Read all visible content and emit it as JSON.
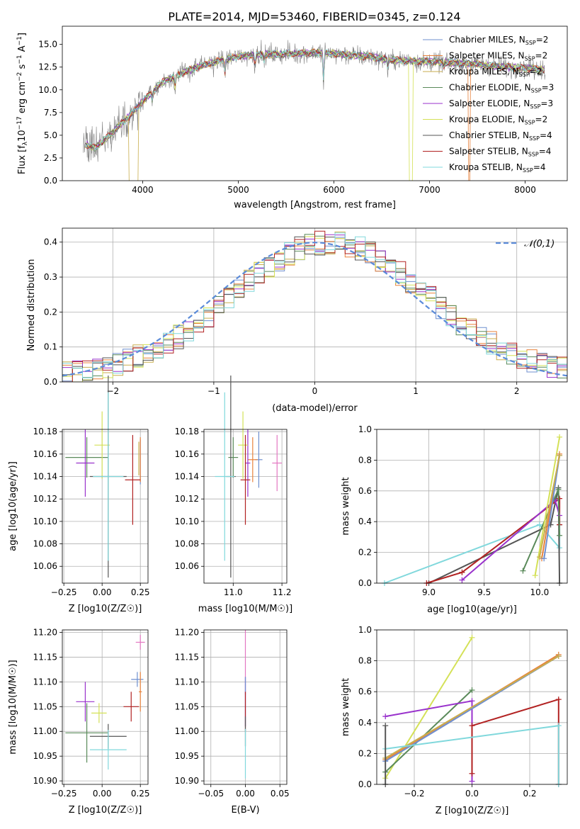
{
  "figure_title": "PLATE=2014, MJD=53460, FIBERID=0345, z=0.124",
  "colors": {
    "Chabrier MILES": "#6f8fcf",
    "Salpeter MILES": "#e8823c",
    "Kroupa MILES": "#c9ae4f",
    "Chabrier ELODIE": "#5a8a5a",
    "Salpeter ELODIE": "#9932cc",
    "Kroupa ELODIE": "#d4e157",
    "Chabrier STELIB": "#555555",
    "Salpeter STELIB": "#b22222",
    "Kroupa STELIB": "#80d8dc",
    "Extra": "#e377c2",
    "Normal": "#5b8bd9"
  },
  "chart_data": [
    {
      "id": "spectrum",
      "type": "line",
      "title": "PLATE=2014, MJD=53460, FIBERID=0345, z=0.124",
      "xlabel": "wavelength [Angstrom, rest frame]",
      "ylabel": "Flux [f_λ10^-17 erg cm^-2 s^-1 A^-1]",
      "xlim": [
        3160,
        8440
      ],
      "ylim": [
        0,
        17
      ],
      "xticks": [
        "4000",
        "5000",
        "6000",
        "7000",
        "8000"
      ],
      "yticks": [
        "0.0",
        "2.5",
        "5.0",
        "7.5",
        "10.0",
        "12.5",
        "15.0"
      ],
      "legend_position": "top-right",
      "continuum": {
        "x": [
          3400,
          3500,
          3600,
          3700,
          3800,
          3900,
          4000,
          4100,
          4200,
          4300,
          4400,
          4500,
          4600,
          4800,
          5000,
          5200,
          5400,
          5600,
          5800,
          6000,
          6200,
          6400,
          6600,
          6800,
          7000,
          7200,
          7400,
          7600,
          7800,
          8000,
          8200
        ],
        "y": [
          4.0,
          3.6,
          4.5,
          5.5,
          6.5,
          7.5,
          8.7,
          9.8,
          10.8,
          11.3,
          11.8,
          12.2,
          12.6,
          13.2,
          13.7,
          13.9,
          13.9,
          14.0,
          14.1,
          14.0,
          13.8,
          13.6,
          13.3,
          13.2,
          13.1,
          13.0,
          12.9,
          12.7,
          12.5,
          12.4,
          12.2
        ]
      },
      "series": [
        {
          "name": "Chabrier MILES",
          "ssp": "2"
        },
        {
          "name": "Salpeter MILES",
          "ssp": "2"
        },
        {
          "name": "Kroupa MILES",
          "ssp": "2"
        },
        {
          "name": "Chabrier ELODIE",
          "ssp": "3"
        },
        {
          "name": "Salpeter ELODIE",
          "ssp": "3"
        },
        {
          "name": "Kroupa ELODIE",
          "ssp": "2"
        },
        {
          "name": "Chabrier STELIB",
          "ssp": "4"
        },
        {
          "name": "Salpeter STELIB",
          "ssp": "4"
        },
        {
          "name": "Kroupa STELIB",
          "ssp": "4"
        }
      ]
    },
    {
      "id": "residual-histogram",
      "type": "bar",
      "xlabel": "(data-model)/error",
      "ylabel": "Normed distribution",
      "xlim": [
        -2.5,
        2.5
      ],
      "ylim": [
        0,
        0.44
      ],
      "xticks": [
        "−2",
        "−1",
        "0",
        "1",
        "2"
      ],
      "yticks": [
        "0.0",
        "0.1",
        "0.2",
        "0.3",
        "0.4"
      ],
      "bin_width": 0.1,
      "normal_label": "𝒩(0,1)",
      "legend_position": "top-right"
    },
    {
      "id": "age-vs-z",
      "type": "scatter",
      "xlabel": "Z [log10(Z/Z☉)]",
      "ylabel": "age [log10(age/yr)]",
      "xlim": [
        -0.26,
        0.3
      ],
      "ylim": [
        10.045,
        10.182
      ],
      "xticks": [
        -0.25,
        0.0,
        0.25
      ],
      "xtick_labels": [
        "−0.25",
        "0.00",
        "0.25"
      ],
      "yticks": [
        10.06,
        10.08,
        10.1,
        10.12,
        10.14,
        10.16,
        10.18
      ],
      "ytick_labels": [
        "10.06",
        "10.08",
        "10.10",
        "10.12",
        "10.14",
        "10.16",
        "10.18"
      ],
      "points": [
        {
          "s": "Chabrier MILES",
          "x": 0.25,
          "xerr": 0.0,
          "y": 10.153,
          "yerr": 0.02
        },
        {
          "s": "Salpeter MILES",
          "x": 0.25,
          "xerr": 0.0,
          "y": 10.155,
          "yerr": 0.02
        },
        {
          "s": "Kroupa MILES",
          "x": 0.24,
          "xerr": 0.0,
          "y": 10.156,
          "yerr": 0.015
        },
        {
          "s": "Chabrier ELODIE",
          "x": -0.1,
          "xerr": 0.14,
          "y": 10.157,
          "yerr": 0.018
        },
        {
          "s": "Salpeter ELODIE",
          "x": -0.11,
          "xerr": 0.06,
          "y": 10.152,
          "yerr": 0.03
        },
        {
          "s": "Kroupa ELODIE",
          "x": 0.0,
          "xerr": 0.05,
          "y": 10.168,
          "yerr": 0.03
        },
        {
          "s": "Chabrier STELIB",
          "x": 0.04,
          "xerr": 0.12,
          "y": 10.14,
          "yerr": 0.09
        },
        {
          "s": "Salpeter STELIB",
          "x": 0.2,
          "xerr": 0.05,
          "y": 10.137,
          "yerr": 0.04
        },
        {
          "s": "Kroupa STELIB",
          "x": 0.04,
          "xerr": 0.1,
          "y": 10.14,
          "yerr": 0.075
        }
      ]
    },
    {
      "id": "age-vs-mass",
      "type": "scatter",
      "xlabel": "mass [log10(M/M☉)]",
      "ylabel": "",
      "xlim": [
        10.88,
        11.22
      ],
      "ylim": [
        10.045,
        10.182
      ],
      "xticks": [
        11.0,
        11.2
      ],
      "xtick_labels": [
        "11.0",
        "11.2"
      ],
      "yticks": [
        10.06,
        10.08,
        10.1,
        10.12,
        10.14,
        10.16,
        10.18
      ],
      "ytick_labels": [
        "10.06",
        "10.08",
        "10.10",
        "10.12",
        "10.14",
        "10.16",
        "10.18"
      ],
      "points": [
        {
          "s": "Chabrier MILES",
          "x": 11.105,
          "xerr": 0.015,
          "y": 10.155,
          "yerr": 0.025
        },
        {
          "s": "Salpeter MILES",
          "x": 11.08,
          "xerr": 0.02,
          "y": 10.155,
          "yerr": 0.02
        },
        {
          "s": "Extra",
          "x": 11.18,
          "xerr": 0.02,
          "y": 10.152,
          "yerr": 0.025
        },
        {
          "s": "Chabrier ELODIE",
          "x": 11.0,
          "xerr": 0.02,
          "y": 10.157,
          "yerr": 0.018
        },
        {
          "s": "Salpeter ELODIE",
          "x": 11.06,
          "xerr": 0.01,
          "y": 10.152,
          "yerr": 0.03
        },
        {
          "s": "Kroupa ELODIE",
          "x": 11.04,
          "xerr": 0.02,
          "y": 10.168,
          "yerr": 0.03
        },
        {
          "s": "Chabrier STELIB",
          "x": 10.99,
          "xerr": 0.02,
          "y": 10.14,
          "yerr": 0.09
        },
        {
          "s": "Salpeter STELIB",
          "x": 11.05,
          "xerr": 0.02,
          "y": 10.137,
          "yerr": 0.04
        },
        {
          "s": "Kroupa STELIB",
          "x": 10.965,
          "xerr": 0.04,
          "y": 10.14,
          "yerr": 0.075
        }
      ]
    },
    {
      "id": "weight-vs-age",
      "type": "line",
      "xlabel": "age [log10(age/yr)]",
      "ylabel": "mass weight",
      "xlim": [
        8.53,
        10.25
      ],
      "ylim": [
        0,
        1
      ],
      "xticks": [
        9.0,
        9.5,
        10.0
      ],
      "xtick_labels": [
        "9.0",
        "9.5",
        "10.0"
      ],
      "yticks": [
        0,
        0.2,
        0.4,
        0.6,
        0.8,
        1.0
      ],
      "ytick_labels": [
        "0.0",
        "0.2",
        "0.4",
        "0.6",
        "0.8",
        "1.0"
      ],
      "lines": [
        {
          "s": "Kroupa STELIB",
          "pts": [
            [
              8.6,
              0.0
            ],
            [
              10.0,
              0.38
            ],
            [
              10.18,
              0.23
            ],
            [
              10.18,
              0.38
            ]
          ]
        },
        {
          "s": "Chabrier STELIB",
          "pts": [
            [
              9.0,
              0.0
            ],
            [
              10.1,
              0.38
            ],
            [
              10.17,
              0.62
            ],
            [
              10.18,
              0.0
            ]
          ]
        },
        {
          "s": "Salpeter STELIB",
          "pts": [
            [
              8.98,
              0.0
            ],
            [
              9.3,
              0.07
            ],
            [
              10.18,
              0.55
            ],
            [
              10.18,
              0.38
            ]
          ]
        },
        {
          "s": "Salpeter ELODIE",
          "pts": [
            [
              9.3,
              0.02
            ],
            [
              10.14,
              0.54
            ],
            [
              10.18,
              0.44
            ]
          ]
        },
        {
          "s": "Chabrier ELODIE",
          "pts": [
            [
              9.85,
              0.08
            ],
            [
              10.17,
              0.61
            ],
            [
              10.18,
              0.31
            ]
          ]
        },
        {
          "s": "Kroupa ELODIE",
          "pts": [
            [
              9.96,
              0.05
            ],
            [
              10.18,
              0.95
            ]
          ]
        },
        {
          "s": "Salpeter MILES",
          "pts": [
            [
              10.02,
              0.16
            ],
            [
              10.18,
              0.84
            ]
          ]
        },
        {
          "s": "Chabrier MILES",
          "pts": [
            [
              10.04,
              0.16
            ],
            [
              10.18,
              0.83
            ]
          ]
        },
        {
          "s": "Kroupa MILES",
          "pts": [
            [
              10.0,
              0.17
            ],
            [
              10.18,
              0.83
            ]
          ]
        }
      ]
    },
    {
      "id": "mass-vs-z",
      "type": "scatter",
      "xlabel": "Z [log10(Z/Z☉)]",
      "ylabel": "mass [log10(M/M☉)]",
      "xlim": [
        -0.26,
        0.3
      ],
      "ylim": [
        10.893,
        11.205
      ],
      "xticks": [
        -0.25,
        0.0,
        0.25
      ],
      "xtick_labels": [
        "−0.25",
        "0.00",
        "0.25"
      ],
      "yticks": [
        10.9,
        10.95,
        11.0,
        11.05,
        11.1,
        11.15,
        11.2
      ],
      "ytick_labels": [
        "10.90",
        "10.95",
        "11.00",
        "11.05",
        "11.10",
        "11.15",
        "11.20"
      ],
      "points": [
        {
          "s": "Chabrier MILES",
          "x": 0.23,
          "xerr": 0.04,
          "y": 11.105,
          "yerr": 0.015
        },
        {
          "s": "Salpeter MILES",
          "x": 0.25,
          "xerr": 0.01,
          "y": 11.08,
          "yerr": 0.04
        },
        {
          "s": "Extra",
          "x": 0.25,
          "xerr": 0.03,
          "y": 11.18,
          "yerr": 0.015
        },
        {
          "s": "Chabrier ELODIE",
          "x": -0.1,
          "xerr": 0.14,
          "y": 10.997,
          "yerr": 0.06
        },
        {
          "s": "Salpeter ELODIE",
          "x": -0.11,
          "xerr": 0.06,
          "y": 11.06,
          "yerr": 0.04
        },
        {
          "s": "Kroupa ELODIE",
          "x": -0.02,
          "xerr": 0.05,
          "y": 11.037,
          "yerr": 0.02
        },
        {
          "s": "Chabrier STELIB",
          "x": 0.04,
          "xerr": 0.12,
          "y": 10.99,
          "yerr": 0.025
        },
        {
          "s": "Salpeter STELIB",
          "x": 0.19,
          "xerr": 0.05,
          "y": 11.05,
          "yerr": 0.03
        },
        {
          "s": "Kroupa STELIB",
          "x": 0.04,
          "xerr": 0.12,
          "y": 10.963,
          "yerr": 0.04
        }
      ]
    },
    {
      "id": "mass-vs-ebv",
      "type": "scatter",
      "xlabel": "E(B-V)",
      "ylabel": "",
      "xlim": [
        -0.06,
        0.06
      ],
      "ylim": [
        10.893,
        11.205
      ],
      "xticks": [
        -0.05,
        0.0,
        0.05
      ],
      "xtick_labels": [
        "−0.05",
        "0.00",
        "0.05"
      ],
      "yticks": [
        10.9,
        10.95,
        11.0,
        11.05,
        11.1,
        11.15,
        11.2
      ],
      "ytick_labels": [
        "10.90",
        "10.95",
        "11.00",
        "11.05",
        "11.10",
        "11.15",
        "11.20"
      ],
      "points": [
        {
          "s": "Extra",
          "x": 0.0,
          "xerr": 0.0,
          "y": 11.14,
          "yerr": 0.065
        },
        {
          "s": "Salpeter ELODIE",
          "x": 0.0,
          "xerr": 0.0,
          "y": 11.06,
          "yerr": 0.05
        },
        {
          "s": "Chabrier MILES",
          "x": 0.0,
          "xerr": 0.0,
          "y": 11.06,
          "yerr": 0.05
        },
        {
          "s": "Salpeter STELIB",
          "x": 0.0,
          "xerr": 0.0,
          "y": 11.04,
          "yerr": 0.04
        },
        {
          "s": "Chabrier STELIB",
          "x": 0.0,
          "xerr": 0.0,
          "y": 11.0,
          "yerr": 0.03
        },
        {
          "s": "Kroupa STELIB",
          "x": 0.0,
          "xerr": 0.0,
          "y": 10.955,
          "yerr": 0.05
        }
      ]
    },
    {
      "id": "weight-vs-z",
      "type": "line",
      "xlabel": "Z [log10(Z/Z☉)]",
      "ylabel": "mass weight",
      "xlim": [
        -0.33,
        0.33
      ],
      "ylim": [
        0,
        1
      ],
      "xticks": [
        -0.2,
        0.0,
        0.2
      ],
      "xtick_labels": [
        "−0.2",
        "0.0",
        "0.2"
      ],
      "yticks": [
        0,
        0.2,
        0.4,
        0.6,
        0.8,
        1.0
      ],
      "ytick_labels": [
        "0.0",
        "0.2",
        "0.4",
        "0.6",
        "0.8",
        "1.0"
      ],
      "lines": [
        {
          "s": "Kroupa ELODIE",
          "pts": [
            [
              -0.3,
              0.04
            ],
            [
              0.0,
              0.95
            ]
          ]
        },
        {
          "s": "Chabrier ELODIE",
          "pts": [
            [
              -0.3,
              0.08
            ],
            [
              0.0,
              0.61
            ]
          ]
        },
        {
          "s": "Salpeter ELODIE",
          "pts": [
            [
              -0.3,
              0.44
            ],
            [
              0.0,
              0.54
            ],
            [
              0.0,
              0.02
            ]
          ]
        },
        {
          "s": "Salpeter STELIB",
          "pts": [
            [
              0.0,
              0.07
            ],
            [
              0.0,
              0.38
            ],
            [
              0.3,
              0.55
            ],
            [
              0.3,
              0.0
            ]
          ]
        },
        {
          "s": "Salpeter MILES",
          "pts": [
            [
              -0.3,
              0.16
            ],
            [
              0.3,
              0.84
            ]
          ]
        },
        {
          "s": "Chabrier MILES",
          "pts": [
            [
              -0.3,
              0.15
            ],
            [
              0.3,
              0.83
            ]
          ]
        },
        {
          "s": "Kroupa MILES",
          "pts": [
            [
              -0.3,
              0.17
            ],
            [
              0.3,
              0.83
            ]
          ]
        },
        {
          "s": "Kroupa STELIB",
          "pts": [
            [
              -0.3,
              0.23
            ],
            [
              0.3,
              0.38
            ],
            [
              0.3,
              0.0
            ]
          ]
        },
        {
          "s": "Chabrier STELIB",
          "pts": [
            [
              -0.3,
              0.0
            ],
            [
              -0.3,
              0.38
            ]
          ]
        }
      ]
    }
  ]
}
